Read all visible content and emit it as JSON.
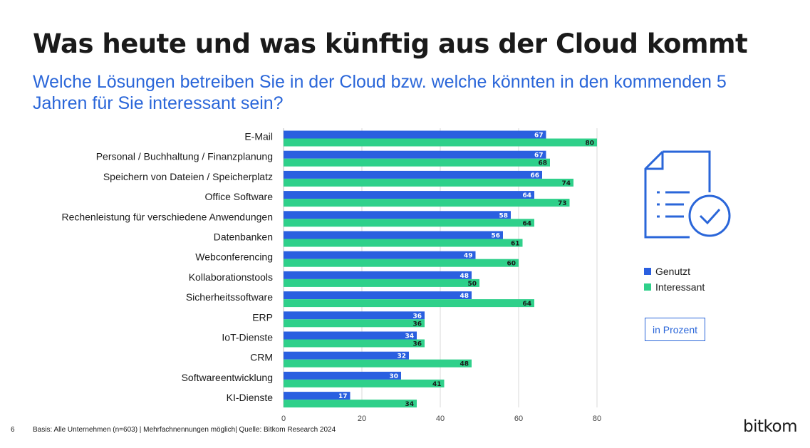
{
  "title": "Was heute und was künftig aus der Cloud kommt",
  "subtitle": "Welche Lösungen betreiben Sie in der Cloud bzw. welche könnten in den kommenden 5 Jahren für Sie interessant sein?",
  "icon": "document-check-icon",
  "unit_label": "in Prozent",
  "page_number": "6",
  "footer": "Basis: Alle Unternehmen (n=603) | Mehrfachnennungen möglich| Quelle: Bitkom Research 2024",
  "logo": "bitkom",
  "colors": {
    "genutzt": "#2a5fe0",
    "interessant": "#2fd08a",
    "grid": "#d9d9d9",
    "text": "#1a1a1a"
  },
  "chart_data": {
    "type": "bar",
    "orientation": "horizontal",
    "categories": [
      "E-Mail",
      "Personal / Buchhaltung / Finanzplanung",
      "Speichern von Dateien / Speicherplatz",
      "Office Software",
      "Rechenleistung für verschiedene Anwendungen",
      "Datenbanken",
      "Webconferencing",
      "Kollaborationstools",
      "Sicherheitssoftware",
      "ERP",
      "IoT-Dienste",
      "CRM",
      "Softwareentwicklung",
      "KI-Dienste"
    ],
    "series": [
      {
        "name": "Genutzt",
        "values": [
          67,
          67,
          66,
          64,
          58,
          56,
          49,
          48,
          48,
          36,
          34,
          32,
          30,
          17
        ]
      },
      {
        "name": "Interessant",
        "values": [
          80,
          68,
          74,
          73,
          64,
          61,
          60,
          50,
          64,
          36,
          36,
          48,
          41,
          34
        ]
      }
    ],
    "xlim": [
      0,
      80
    ],
    "xticks": [
      0,
      20,
      40,
      60,
      80
    ],
    "grid": true,
    "legend": "right"
  }
}
